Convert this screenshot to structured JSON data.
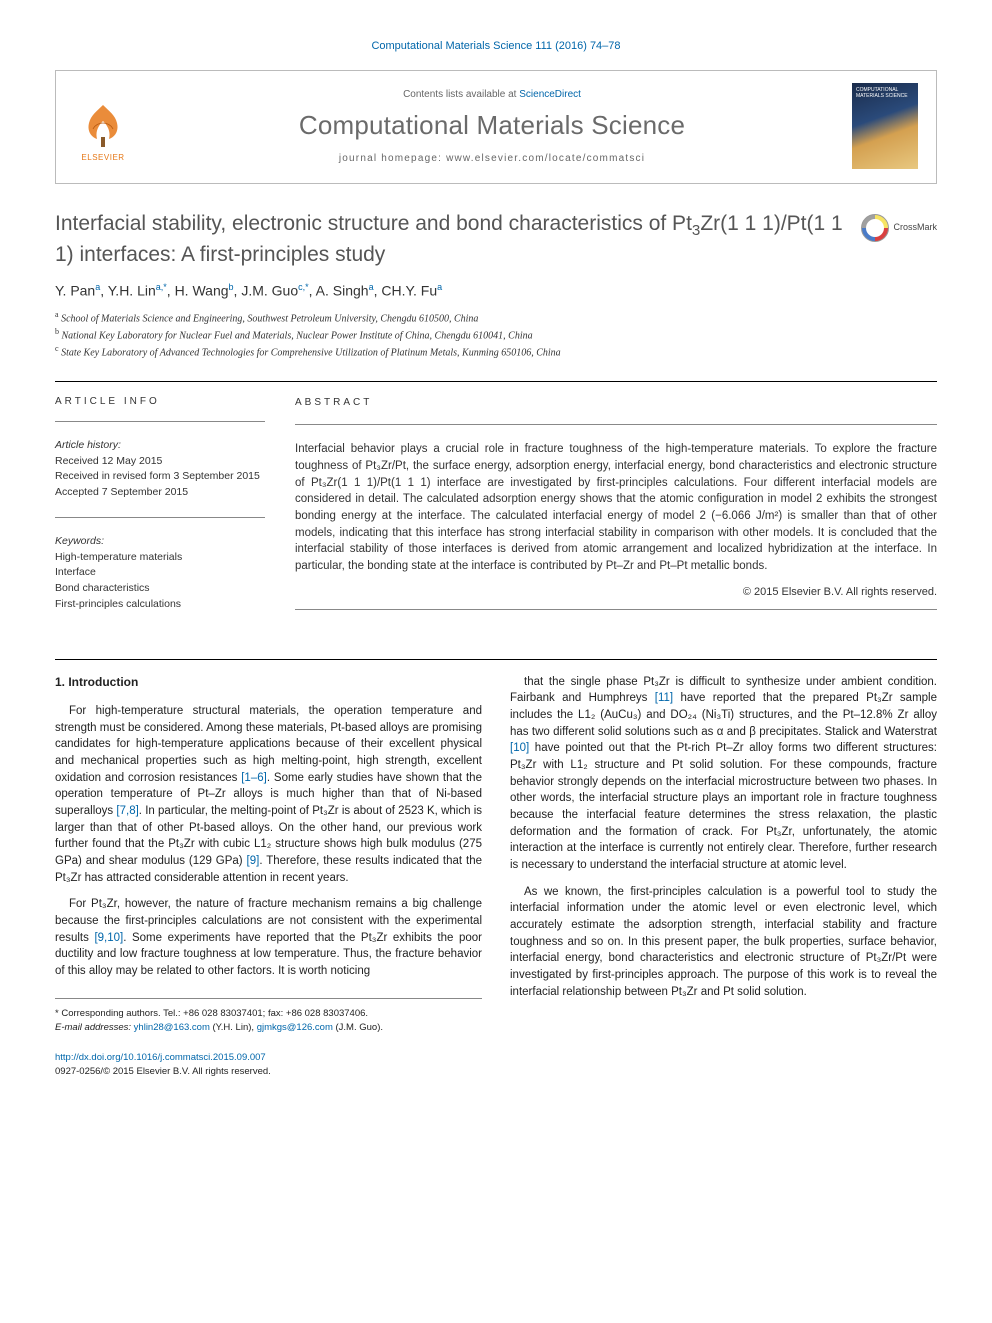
{
  "journal_ref": "Computational Materials Science 111 (2016) 74–78",
  "header": {
    "contents_prefix": "Contents lists available at ",
    "contents_link": "ScienceDirect",
    "journal_name": "Computational Materials Science",
    "homepage_prefix": "journal homepage: ",
    "homepage_url": "www.elsevier.com/locate/commatsci",
    "elsevier_label": "ELSEVIER",
    "cover_text": "COMPUTATIONAL MATERIALS SCIENCE"
  },
  "title_parts": {
    "p1": "Interfacial stability, electronic structure and bond characteristics of Pt",
    "sub1": "3",
    "p2": "Zr(1 1 1)/Pt(1 1 1) interfaces: A first-principles study"
  },
  "crossmark_label": "CrossMark",
  "authors_html": "Y. Pan<sup>a</sup>, Y.H. Lin<sup>a,*</sup>, H. Wang<sup>b</sup>, J.M. Guo<sup>c,*</sup>, A. Singh<sup>a</sup>, CH.Y. Fu<sup>a</sup>",
  "affiliations": [
    {
      "sup": "a",
      "text": "School of Materials Science and Engineering, Southwest Petroleum University, Chengdu 610500, China"
    },
    {
      "sup": "b",
      "text": "National Key Laboratory for Nuclear Fuel and Materials, Nuclear Power Institute of China, Chengdu 610041, China"
    },
    {
      "sup": "c",
      "text": "State Key Laboratory of Advanced Technologies for Comprehensive Utilization of Platinum Metals, Kunming 650106, China"
    }
  ],
  "info": {
    "label": "ARTICLE INFO",
    "history_label": "Article history:",
    "received": "Received 12 May 2015",
    "revised": "Received in revised form 3 September 2015",
    "accepted": "Accepted 7 September 2015",
    "keywords_label": "Keywords:",
    "keywords": [
      "High-temperature materials",
      "Interface",
      "Bond characteristics",
      "First-principles calculations"
    ]
  },
  "abstract": {
    "label": "ABSTRACT",
    "text": "Interfacial behavior plays a crucial role in fracture toughness of the high-temperature materials. To explore the fracture toughness of Pt₃Zr/Pt, the surface energy, adsorption energy, interfacial energy, bond characteristics and electronic structure of Pt₃Zr(1 1 1)/Pt(1 1 1) interface are investigated by first-principles calculations. Four different interfacial models are considered in detail. The calculated adsorption energy shows that the atomic configuration in model 2 exhibits the strongest bonding energy at the interface. The calculated interfacial energy of model 2 (−6.066 J/m²) is smaller than that of other models, indicating that this interface has strong interfacial stability in comparison with other models. It is concluded that the interfacial stability of those interfaces is derived from atomic arrangement and localized hybridization at the interface. In particular, the bonding state at the interface is contributed by Pt–Zr and Pt–Pt metallic bonds.",
    "copyright": "© 2015 Elsevier B.V. All rights reserved."
  },
  "body": {
    "section_title": "1. Introduction",
    "left_paragraphs": [
      "For high-temperature structural materials, the operation temperature and strength must be considered. Among these materials, Pt-based alloys are promising candidates for high-temperature applications because of their excellent physical and mechanical properties such as high melting-point, high strength, excellent oxidation and corrosion resistances [1–6]. Some early studies have shown that the operation temperature of Pt–Zr alloys is much higher than that of Ni-based superalloys [7,8]. In particular, the melting-point of Pt₃Zr is about of 2523 K, which is larger than that of other Pt-based alloys. On the other hand, our previous work further found that the Pt₃Zr with cubic L1₂ structure shows high bulk modulus (275 GPa) and shear modulus (129 GPa) [9]. Therefore, these results indicated that the Pt₃Zr has attracted considerable attention in recent years.",
      "For Pt₃Zr, however, the nature of fracture mechanism remains a big challenge because the first-principles calculations are not consistent with the experimental results [9,10]. Some experiments have reported that the Pt₃Zr exhibits the poor ductility and low fracture toughness at low temperature. Thus, the fracture behavior of this alloy may be related to other factors. It is worth noticing"
    ],
    "right_paragraphs": [
      "that the single phase Pt₃Zr is difficult to synthesize under ambient condition. Fairbank and Humphreys [11] have reported that the prepared Pt₃Zr sample includes the L1₂ (AuCu₃) and DO₂₄ (Ni₃Ti) structures, and the Pt–12.8% Zr alloy has two different solid solutions such as α and β precipitates. Stalick and Waterstrat [10] have pointed out that the Pt-rich Pt–Zr alloy forms two different structures: Pt₃Zr with L1₂ structure and Pt solid solution. For these compounds, fracture behavior strongly depends on the interfacial microstructure between two phases. In other words, the interfacial structure plays an important role in fracture toughness because the interfacial feature determines the stress relaxation, the plastic deformation and the formation of crack. For Pt₃Zr, unfortunately, the atomic interaction at the interface is currently not entirely clear. Therefore, further research is necessary to understand the interfacial structure at atomic level.",
      "As we known, the first-principles calculation is a powerful tool to study the interfacial information under the atomic level or even electronic level, which accurately estimate the adsorption strength, interfacial stability and fracture toughness and so on. In this present paper, the bulk properties, surface behavior, interfacial energy, bond characteristics and electronic structure of Pt₃Zr/Pt were investigated by first-principles approach. The purpose of this work is to reveal the interfacial relationship between Pt₃Zr and Pt solid solution."
    ]
  },
  "footer": {
    "corresponding": "* Corresponding authors. Tel.: +86 028 83037401; fax: +86 028 83037406.",
    "email_label": "E-mail addresses: ",
    "email1": "yhlin28@163.com",
    "email1_who": " (Y.H. Lin), ",
    "email2": "gjmkgs@126.com",
    "email2_who": " (J.M. Guo).",
    "doi_url": "http://dx.doi.org/10.1016/j.commatsci.2015.09.007",
    "issn": "0927-0256/© 2015 Elsevier B.V. All rights reserved."
  },
  "colors": {
    "link": "#0066aa",
    "elsevier_orange": "#e67817",
    "title_gray": "#555",
    "border": "#bbb"
  }
}
